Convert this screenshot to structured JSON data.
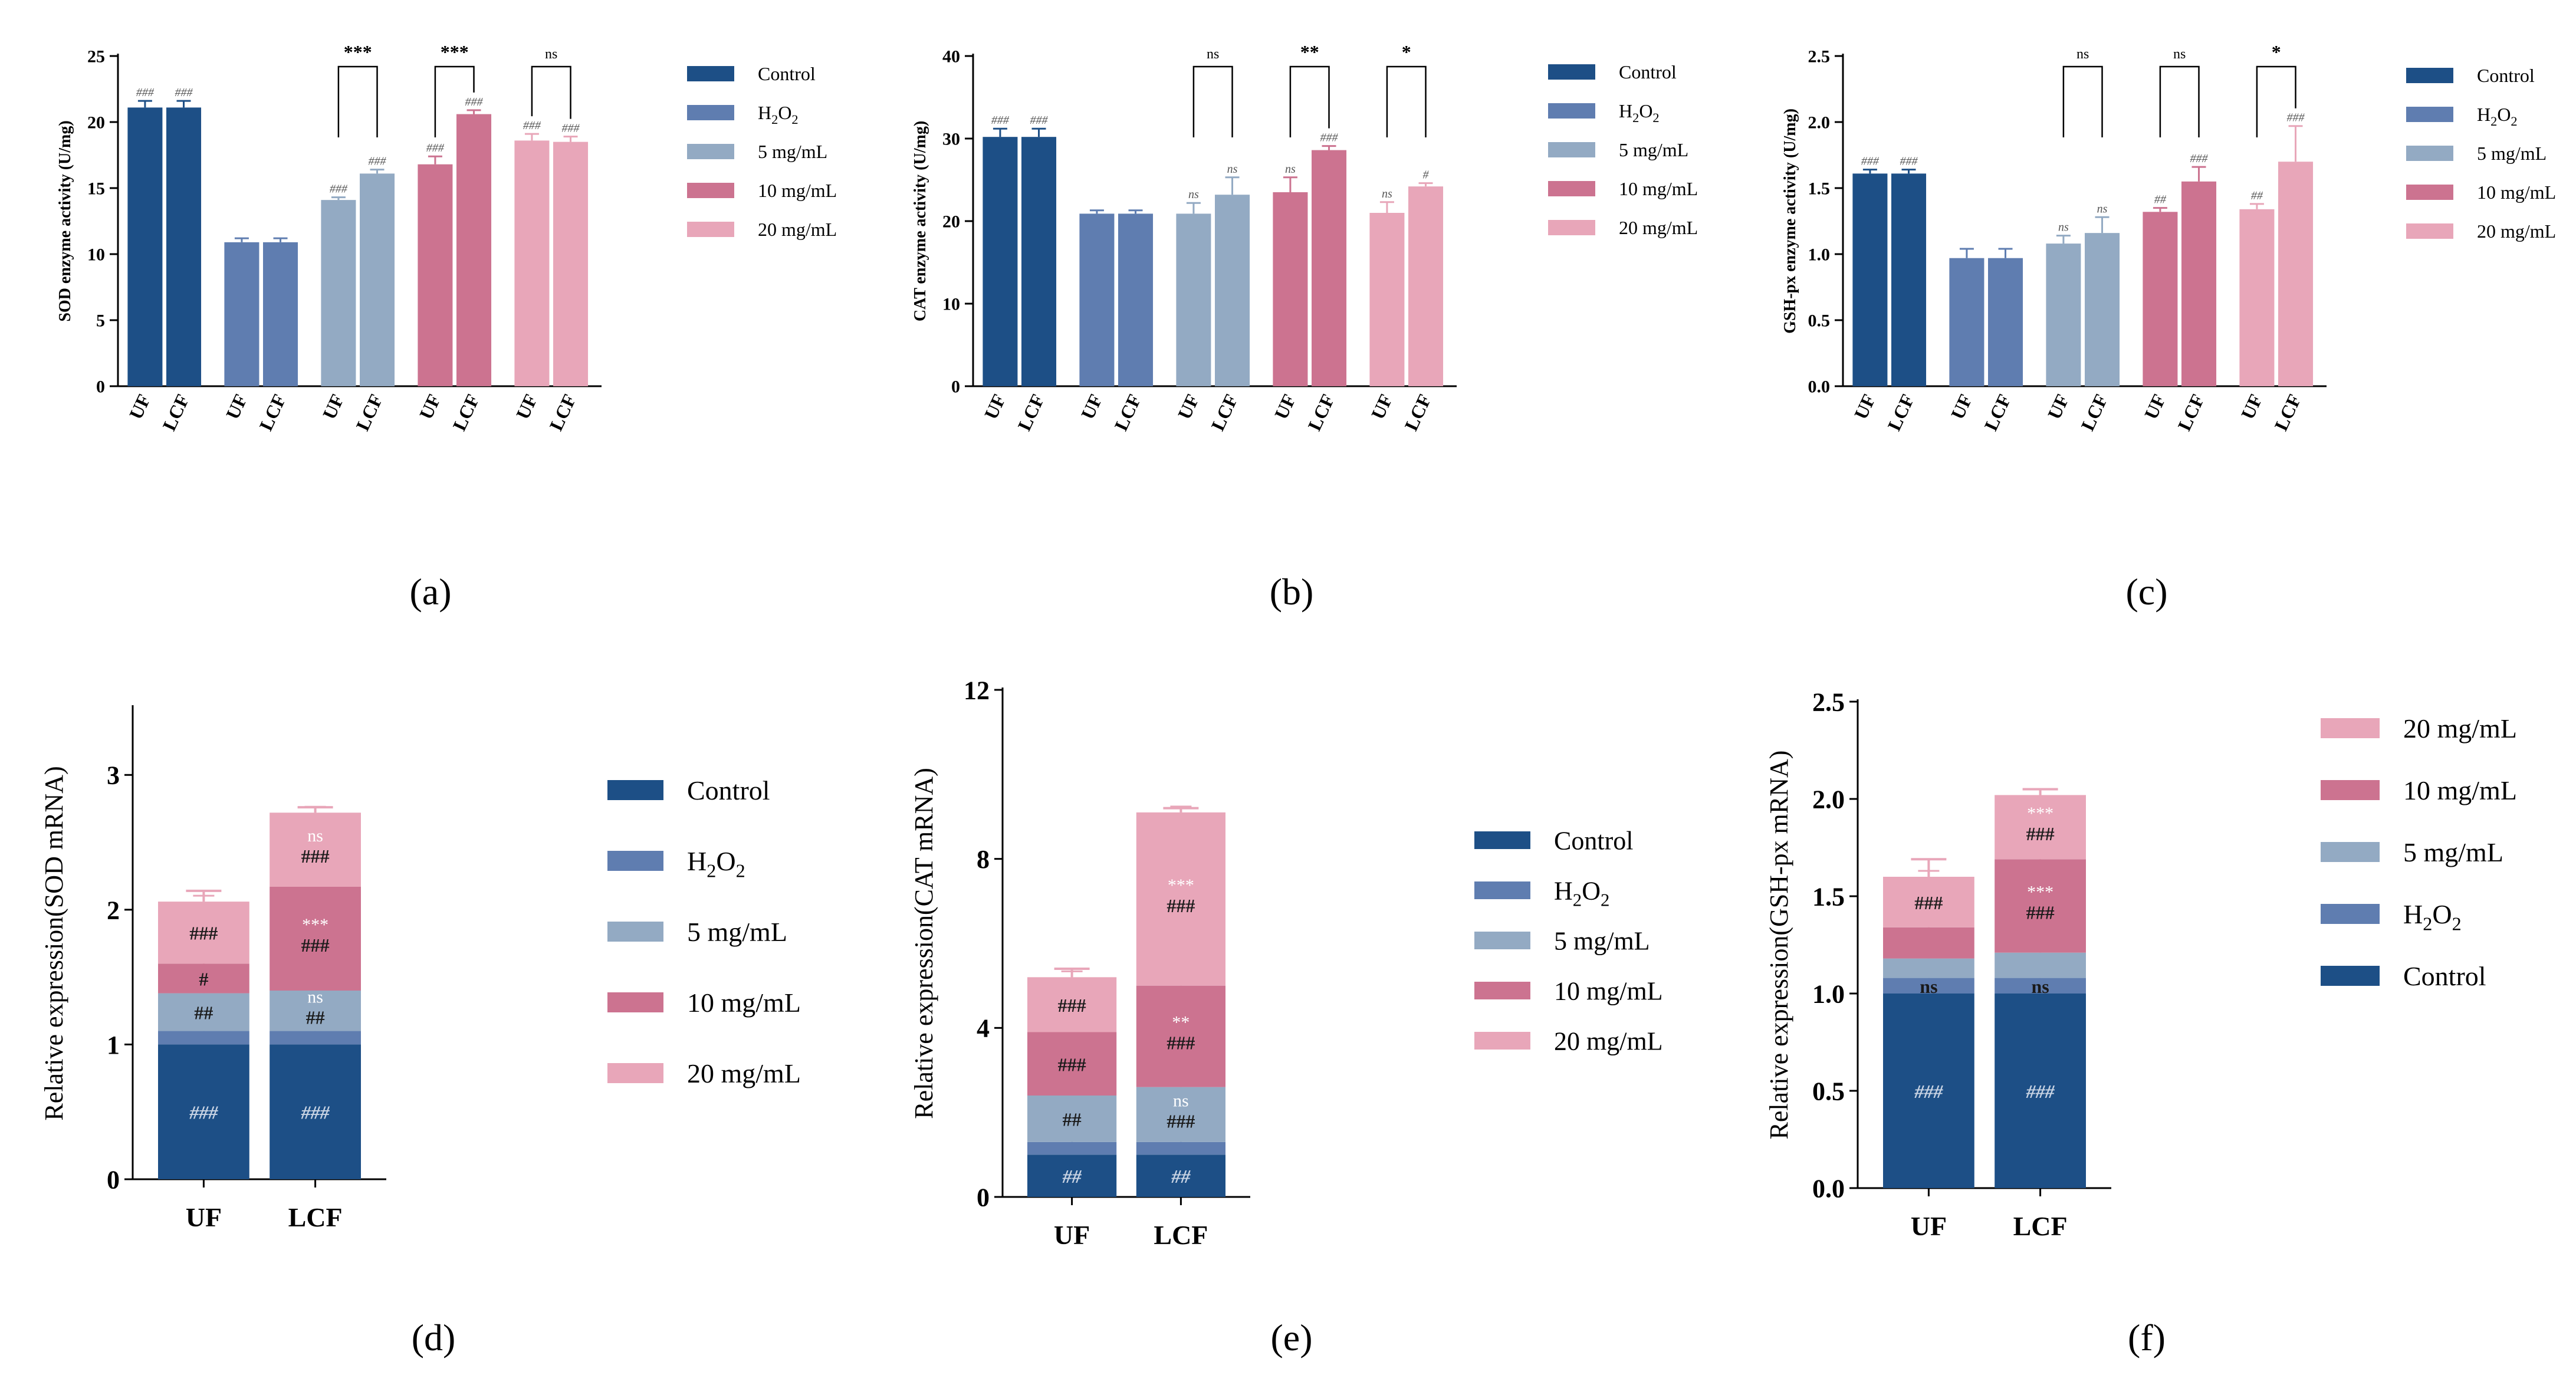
{
  "colors": {
    "control": "#1d4f86",
    "h2o2": "#5f7db0",
    "mg5": "#93aac3",
    "mg10": "#cc7390",
    "mg20": "#e8a6b9",
    "axis": "#000000",
    "annot_light": "#e7ecf3"
  },
  "legend_labels": [
    "Control",
    "H2O2",
    "5 mg/mL",
    "10 mg/mL",
    "20 mg/mL"
  ],
  "chart_data": [
    {
      "id": "a",
      "type": "bar",
      "panel_label": "(a)",
      "ylabel": "SOD enzyme activity (U/mg)",
      "ylim": [
        0,
        25
      ],
      "yticks": [
        0,
        5,
        10,
        15,
        20,
        25
      ],
      "groups": [
        "Control",
        "H2O2",
        "5 mg/mL",
        "10 mg/mL",
        "20 mg/mL"
      ],
      "categories": [
        "UF",
        "LCF"
      ],
      "values": [
        [
          21.1,
          21.1
        ],
        [
          10.9,
          10.9
        ],
        [
          14.1,
          16.1
        ],
        [
          16.8,
          20.6
        ],
        [
          18.6,
          18.5
        ]
      ],
      "errors": [
        [
          0.5,
          0.5
        ],
        [
          0.3,
          0.3
        ],
        [
          0.2,
          0.3
        ],
        [
          0.6,
          0.3
        ],
        [
          0.5,
          0.4
        ]
      ],
      "bar_annotations": [
        [
          "###",
          "###"
        ],
        [
          "",
          ""
        ],
        [
          "###",
          "###"
        ],
        [
          "###",
          "###"
        ],
        [
          "###",
          "###"
        ]
      ],
      "comparisons": [
        {
          "group": 2,
          "label": "***"
        },
        {
          "group": 3,
          "label": "***"
        },
        {
          "group": 4,
          "label": "ns"
        }
      ],
      "legend": [
        "Control",
        "H2O2",
        "5 mg/mL",
        "10 mg/mL",
        "20 mg/mL"
      ],
      "legend_order": [
        0,
        1,
        2,
        3,
        4
      ]
    },
    {
      "id": "b",
      "type": "bar",
      "panel_label": "(b)",
      "ylabel": "CAT enzyme activity (U/mg)",
      "ylim": [
        0,
        40
      ],
      "yticks": [
        0,
        10,
        20,
        30,
        40
      ],
      "groups": [
        "Control",
        "H2O2",
        "5 mg/mL",
        "10 mg/mL",
        "20 mg/mL"
      ],
      "categories": [
        "UF",
        "LCF"
      ],
      "values": [
        [
          30.2,
          30.2
        ],
        [
          20.9,
          20.9
        ],
        [
          20.9,
          23.2
        ],
        [
          23.5,
          28.6
        ],
        [
          21.0,
          24.2
        ]
      ],
      "errors": [
        [
          1.0,
          1.0
        ],
        [
          0.4,
          0.4
        ],
        [
          1.3,
          2.1
        ],
        [
          1.8,
          0.5
        ],
        [
          1.3,
          0.4
        ]
      ],
      "bar_annotations": [
        [
          "###",
          "###"
        ],
        [
          "",
          ""
        ],
        [
          "ns",
          "ns"
        ],
        [
          "ns",
          "###"
        ],
        [
          "ns",
          "#"
        ]
      ],
      "comparisons": [
        {
          "group": 2,
          "label": "ns"
        },
        {
          "group": 3,
          "label": "**"
        },
        {
          "group": 4,
          "label": "*"
        }
      ],
      "legend": [
        "Control",
        "H2O2",
        "5 mg/mL",
        "10 mg/mL",
        "20 mg/mL"
      ],
      "legend_order": [
        0,
        1,
        2,
        3,
        4
      ]
    },
    {
      "id": "c",
      "type": "bar",
      "panel_label": "(c)",
      "ylabel": "GSH-px enzyme activity (U/mg)",
      "ylim": [
        0,
        2.5
      ],
      "yticks": [
        0.0,
        0.5,
        1.0,
        1.5,
        2.0,
        2.5
      ],
      "groups": [
        "Control",
        "H2O2",
        "5 mg/mL",
        "10 mg/mL",
        "20 mg/mL"
      ],
      "categories": [
        "UF",
        "LCF"
      ],
      "values": [
        [
          1.61,
          1.61
        ],
        [
          0.97,
          0.97
        ],
        [
          1.08,
          1.16
        ],
        [
          1.32,
          1.55
        ],
        [
          1.34,
          1.7
        ]
      ],
      "errors": [
        [
          0.03,
          0.03
        ],
        [
          0.07,
          0.07
        ],
        [
          0.06,
          0.12
        ],
        [
          0.03,
          0.11
        ],
        [
          0.04,
          0.27
        ]
      ],
      "bar_annotations": [
        [
          "###",
          "###"
        ],
        [
          "",
          ""
        ],
        [
          "ns",
          "ns"
        ],
        [
          "##",
          "###"
        ],
        [
          "##",
          "###"
        ]
      ],
      "comparisons": [
        {
          "group": 2,
          "label": "ns"
        },
        {
          "group": 3,
          "label": "ns"
        },
        {
          "group": 4,
          "label": "*"
        }
      ],
      "legend": [
        "Control",
        "H2O2",
        "5 mg/mL",
        "10 mg/mL",
        "20 mg/mL"
      ],
      "legend_order": [
        0,
        1,
        2,
        3,
        4
      ]
    },
    {
      "id": "d",
      "type": "stacked_bar",
      "panel_label": "(d)",
      "ylabel": "Relative expression(SOD mRNA)",
      "ylim": [
        0,
        3.5
      ],
      "yticks": [
        0,
        1,
        2,
        3
      ],
      "categories": [
        "UF",
        "LCF"
      ],
      "series": [
        {
          "name": "Control",
          "values": [
            1.0,
            1.0
          ],
          "labels": [
            "###",
            "###"
          ]
        },
        {
          "name": "H2O2",
          "values": [
            0.1,
            0.1
          ],
          "labels": [
            "",
            ""
          ]
        },
        {
          "name": "5 mg/mL",
          "values": [
            0.28,
            0.3
          ],
          "labels": [
            "##",
            "##"
          ],
          "sub_labels": [
            "",
            "ns"
          ]
        },
        {
          "name": "10 mg/mL",
          "values": [
            0.22,
            0.77
          ],
          "labels": [
            "#",
            "###"
          ],
          "sub_labels": [
            "",
            "***"
          ]
        },
        {
          "name": "20 mg/mL",
          "values": [
            0.46,
            0.55
          ],
          "labels": [
            "###",
            "###"
          ],
          "sub_labels": [
            "",
            "ns"
          ]
        }
      ],
      "total_errors": [
        0.08,
        0.04
      ],
      "legend": [
        "Control",
        "H2O2",
        "5 mg/mL",
        "10 mg/mL",
        "20 mg/mL"
      ],
      "legend_order": [
        0,
        1,
        2,
        3,
        4
      ]
    },
    {
      "id": "e",
      "type": "stacked_bar",
      "panel_label": "(e)",
      "ylabel": "Relative expression(CAT mRNA)",
      "ylim": [
        0,
        12
      ],
      "yticks": [
        0,
        4,
        8,
        12
      ],
      "categories": [
        "UF",
        "LCF"
      ],
      "series": [
        {
          "name": "Control",
          "values": [
            1.0,
            1.0
          ],
          "labels": [
            "##",
            "##"
          ]
        },
        {
          "name": "H2O2",
          "values": [
            0.3,
            0.3
          ],
          "labels": [
            "",
            ""
          ]
        },
        {
          "name": "5 mg/mL",
          "values": [
            1.1,
            1.3
          ],
          "labels": [
            "##",
            "###"
          ],
          "sub_labels": [
            "",
            "ns"
          ]
        },
        {
          "name": "10 mg/mL",
          "values": [
            1.5,
            2.4
          ],
          "labels": [
            "###",
            "###"
          ],
          "sub_labels": [
            "",
            "**"
          ]
        },
        {
          "name": "20 mg/mL",
          "values": [
            1.3,
            4.1
          ],
          "labels": [
            "###",
            "###"
          ],
          "sub_labels": [
            "",
            "***"
          ]
        }
      ],
      "total_errors": [
        0.2,
        0.1
      ],
      "legend": [
        "Control",
        "H2O2",
        "5 mg/mL",
        "10 mg/mL",
        "20 mg/mL"
      ],
      "legend_order": [
        0,
        1,
        2,
        3,
        4
      ]
    },
    {
      "id": "f",
      "type": "stacked_bar",
      "panel_label": "(f)",
      "ylabel": "Relative expression(GSH-px mRNA)",
      "ylim": [
        0,
        2.5
      ],
      "yticks": [
        0.0,
        0.5,
        1.0,
        1.5,
        2.0,
        2.5
      ],
      "categories": [
        "UF",
        "LCF"
      ],
      "series": [
        {
          "name": "Control",
          "values": [
            1.0,
            1.0
          ],
          "labels": [
            "###",
            "###"
          ]
        },
        {
          "name": "H2O2",
          "values": [
            0.08,
            0.08
          ],
          "labels": [
            "ns",
            "ns"
          ]
        },
        {
          "name": "5 mg/mL",
          "values": [
            0.1,
            0.13
          ],
          "labels": [
            "",
            ""
          ]
        },
        {
          "name": "10 mg/mL",
          "values": [
            0.16,
            0.48
          ],
          "labels": [
            "",
            "###"
          ],
          "sub_labels": [
            "",
            "***"
          ]
        },
        {
          "name": "20 mg/mL",
          "values": [
            0.26,
            0.33
          ],
          "labels": [
            "###",
            "###"
          ],
          "sub_labels": [
            "",
            "***"
          ]
        }
      ],
      "total_errors": [
        0.09,
        0.03
      ],
      "legend": [
        "Control",
        "H2O2",
        "5 mg/mL",
        "10 mg/mL",
        "20 mg/mL"
      ],
      "legend_order": [
        4,
        3,
        2,
        1,
        0
      ]
    }
  ]
}
